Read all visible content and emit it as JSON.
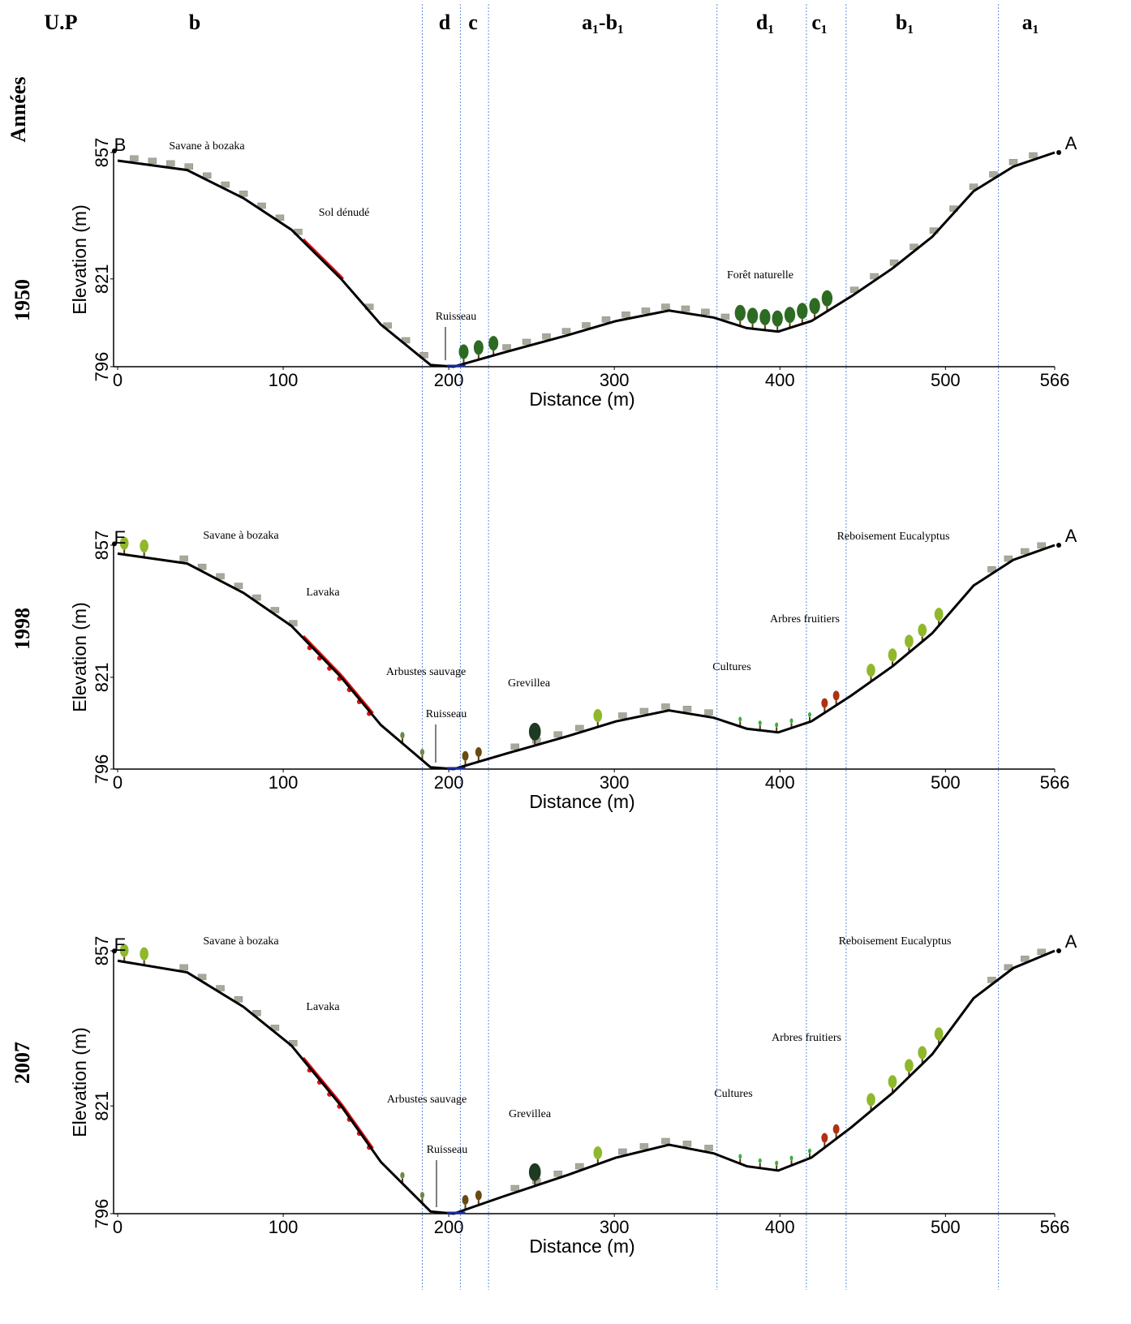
{
  "header": {
    "label": "U.P",
    "units": [
      "b",
      "d",
      "c",
      "a₁-b₁",
      "d₁",
      "c₁",
      "b₁",
      "a₁"
    ],
    "boundaries": [
      184,
      207,
      224,
      362,
      416,
      440,
      532
    ]
  },
  "years_label": "Années",
  "chart_data": [
    {
      "type": "line",
      "year": "1950",
      "xlabel": "Distance (m)",
      "ylabel": "Elevation (m)",
      "start_label": "B",
      "end_label": "A",
      "x": [
        0,
        42,
        76,
        105,
        135,
        159,
        189,
        203,
        233,
        272,
        301,
        333,
        360,
        380,
        399,
        419,
        443,
        468,
        492,
        517,
        541,
        566
      ],
      "series": [
        {
          "color": "#000000",
          "values": [
            854.7,
            852,
            844,
            835,
            821,
            808,
            796.5,
            796,
            800,
            805,
            809,
            812,
            810,
            807,
            806,
            809,
            816,
            824,
            833,
            846,
            853,
            857
          ]
        }
      ],
      "xlim": [
        0,
        566
      ],
      "ylim": [
        796,
        857
      ],
      "xticks": [
        0,
        100,
        200,
        300,
        400,
        500,
        566
      ],
      "yticks": [
        796,
        821,
        857
      ],
      "annotations": [
        "Savane à bozaka",
        "Sol dénudé",
        "Ruisseau",
        "Forêt naturelle"
      ]
    },
    {
      "type": "line",
      "year": "1998",
      "xlabel": "Distance (m)",
      "ylabel": "Elevation (m)",
      "start_label": "E",
      "end_label": "A",
      "x": [
        0,
        42,
        76,
        105,
        135,
        159,
        189,
        203,
        233,
        272,
        301,
        333,
        360,
        380,
        399,
        419,
        443,
        468,
        492,
        517,
        541,
        566
      ],
      "series": [
        {
          "color": "#000000",
          "values": [
            854.7,
            852,
            844,
            835,
            821,
            808,
            796.5,
            796,
            800,
            805,
            809,
            812,
            810,
            807,
            806,
            809,
            816,
            824,
            833,
            846,
            853,
            857
          ]
        }
      ],
      "xlim": [
        0,
        566
      ],
      "ylim": [
        796,
        857
      ],
      "xticks": [
        0,
        100,
        200,
        300,
        400,
        500,
        566
      ],
      "yticks": [
        796,
        821,
        857
      ],
      "annotations": [
        "Savane à bozaka",
        "Lavaka",
        "Arbustes sauvage",
        "Ruisseau",
        "Grevillea",
        "Cultures",
        "Arbres fruitiers",
        "Reboisement Eucalyptus"
      ]
    },
    {
      "type": "line",
      "year": "2007",
      "xlabel": "Distance (m)",
      "ylabel": "Elevation (m)",
      "start_label": "E",
      "end_label": "A",
      "x": [
        0,
        42,
        76,
        105,
        135,
        159,
        189,
        203,
        233,
        272,
        301,
        333,
        360,
        380,
        399,
        419,
        443,
        468,
        492,
        517,
        541,
        566
      ],
      "series": [
        {
          "color": "#000000",
          "values": [
            854.7,
            852,
            844,
            835,
            821,
            808,
            796.5,
            796,
            800,
            805,
            809,
            812,
            810,
            807,
            806,
            809,
            816,
            824,
            833,
            846,
            853,
            857
          ]
        }
      ],
      "xlim": [
        0,
        566
      ],
      "ylim": [
        796,
        857
      ],
      "xticks": [
        0,
        100,
        200,
        300,
        400,
        500,
        566
      ],
      "yticks": [
        796,
        821,
        857
      ],
      "annotations": [
        "Savane à bozaka",
        "Lavaka",
        "Arbustes sauvage",
        "Ruisseau",
        "Grevillea",
        "Cultures",
        "Arbres fruitiers",
        "Reboisement Eucalyptus"
      ]
    }
  ]
}
